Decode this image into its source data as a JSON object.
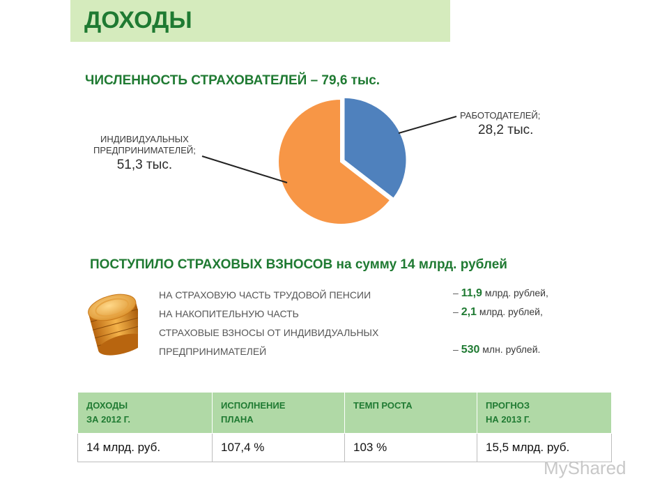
{
  "header": {
    "title": "ДОХОДЫ"
  },
  "subtitle": "ЧИСЛЕННОСТЬ СТРАХОВАТЕЛЕЙ – 79,6 тыс.",
  "chart_data": {
    "type": "pie",
    "total": 79.6,
    "slices": [
      {
        "label": "РАБОТОДАТЕЛЕЙ;",
        "value": 28.2,
        "value_text": "28,2 тыс.",
        "color": "#4f81bd"
      },
      {
        "label_lines": [
          "ИНДИВИДУАЛЬНЫХ",
          "ПРЕДПРИНИМАТЕЛЕЙ;"
        ],
        "value": 51.3,
        "value_text": "51,3 тыс.",
        "color": "#f79646"
      }
    ]
  },
  "section2": {
    "title": "ПОСТУПИЛО СТРАХОВЫХ ВЗНОСОВ на сумму 14 млрд. рублей",
    "lines": [
      {
        "label": "НА СТРАХОВУЮ ЧАСТЬ ТРУДОВОЙ ПЕНСИИ",
        "dash": "–",
        "num": "11,9",
        "unit": "млрд. рублей,"
      },
      {
        "label": "НА НАКОПИТЕЛЬНУЮ  ЧАСТЬ",
        "dash": "–",
        "num": "2,1",
        "unit": "млрд. рублей,"
      },
      {
        "label": "СТРАХОВЫЕ ВЗНОСЫ ОТ ИНДИВИДУАЛЬНЫХ"
      },
      {
        "label": "ПРЕДПРИНИМАТЕЛЕЙ",
        "dash": "–",
        "num": "530",
        "unit": "млн. рублей."
      }
    ]
  },
  "table": {
    "headers": [
      [
        "ДОХОДЫ",
        "ЗА 2012 Г."
      ],
      [
        "ИСПОЛНЕНИЕ",
        "ПЛАНА"
      ],
      [
        "ТЕМП РОСТА"
      ],
      [
        "ПРОГНОЗ",
        "НА 2013 Г."
      ]
    ],
    "row": [
      "14 млрд. руб.",
      "107,4 %",
      "103 %",
      "15,5 млрд. руб."
    ]
  },
  "watermark": "MyShared"
}
